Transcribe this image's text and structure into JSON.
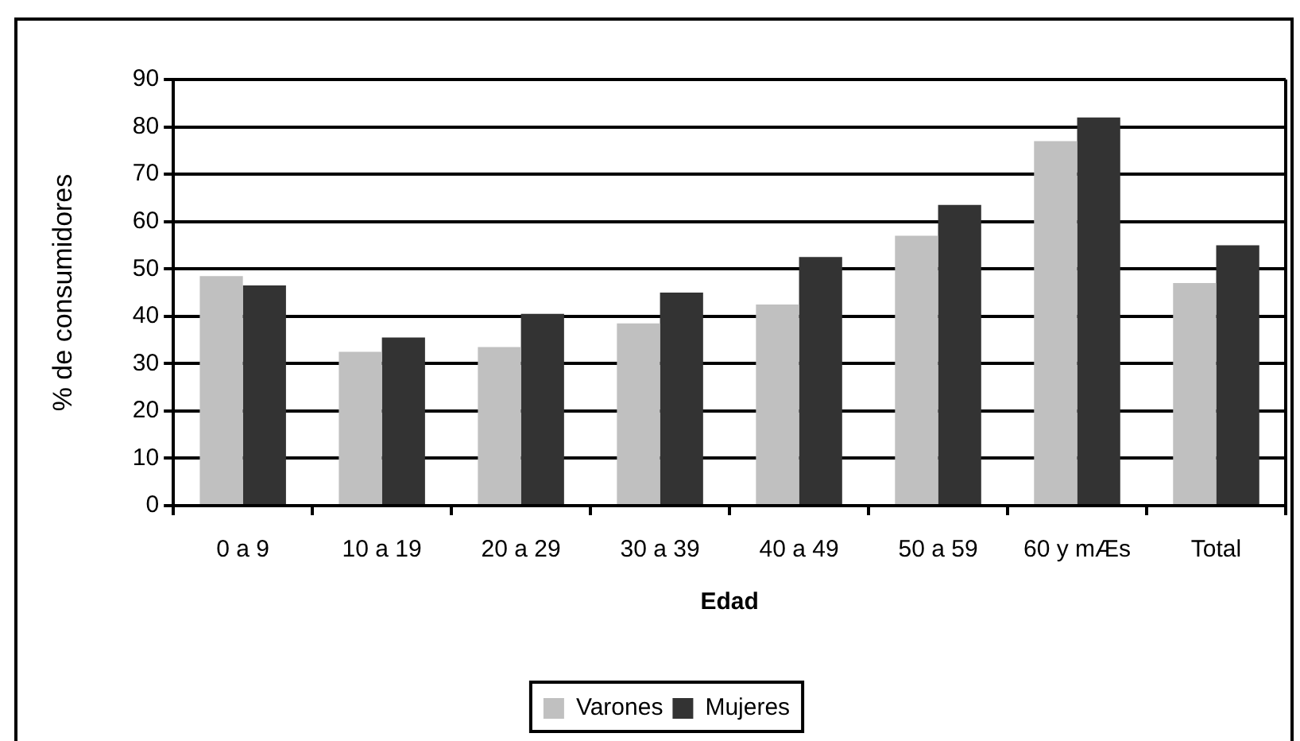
{
  "chart_data": {
    "type": "bar",
    "xlabel": "Edad",
    "ylabel": "% de consumidores",
    "categories": [
      "0 a 9",
      "10 a 19",
      "20 a 29",
      "30 a 39",
      "40 a 49",
      "50 a 59",
      "60 y mÆs",
      "Total"
    ],
    "series": [
      {
        "name": "Varones",
        "color": "#c0c0c0",
        "values": [
          48.5,
          32.5,
          33.5,
          38.5,
          42.5,
          57,
          77,
          47
        ]
      },
      {
        "name": "Mujeres",
        "color": "#333333",
        "values": [
          46.5,
          35.5,
          40.5,
          45,
          52.5,
          63.5,
          82,
          55
        ]
      }
    ],
    "ylim": [
      0,
      90
    ],
    "yticks": [
      0,
      10,
      20,
      30,
      40,
      50,
      60,
      70,
      80,
      90
    ],
    "grid": "y",
    "legend": "bottom"
  }
}
